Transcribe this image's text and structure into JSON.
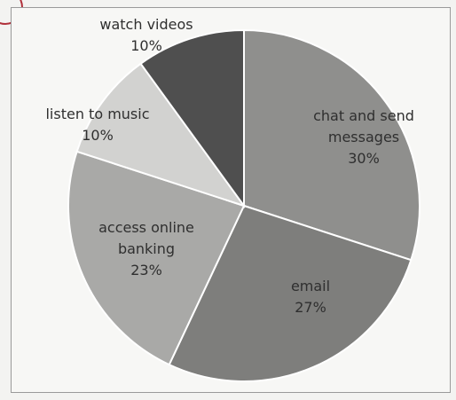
{
  "chart_data": {
    "type": "pie",
    "slices": [
      {
        "label_lines": [
          "chat and send",
          "messages"
        ],
        "value_label": "30%",
        "value": 30,
        "color": "#8f8f8d"
      },
      {
        "label_lines": [
          "email"
        ],
        "value_label": "27%",
        "value": 27,
        "color": "#7e7e7c"
      },
      {
        "label_lines": [
          "access online",
          "banking"
        ],
        "value_label": "23%",
        "value": 23,
        "color": "#a9a9a7"
      },
      {
        "label_lines": [
          "listen to music"
        ],
        "value_label": "10%",
        "value": 10,
        "color": "#d2d2d0"
      },
      {
        "label_lines": [
          "watch videos"
        ],
        "value_label": "10%",
        "value": 10,
        "color": "#4f4f4f"
      }
    ],
    "start_angle_deg": 0,
    "direction": "clockwise"
  }
}
